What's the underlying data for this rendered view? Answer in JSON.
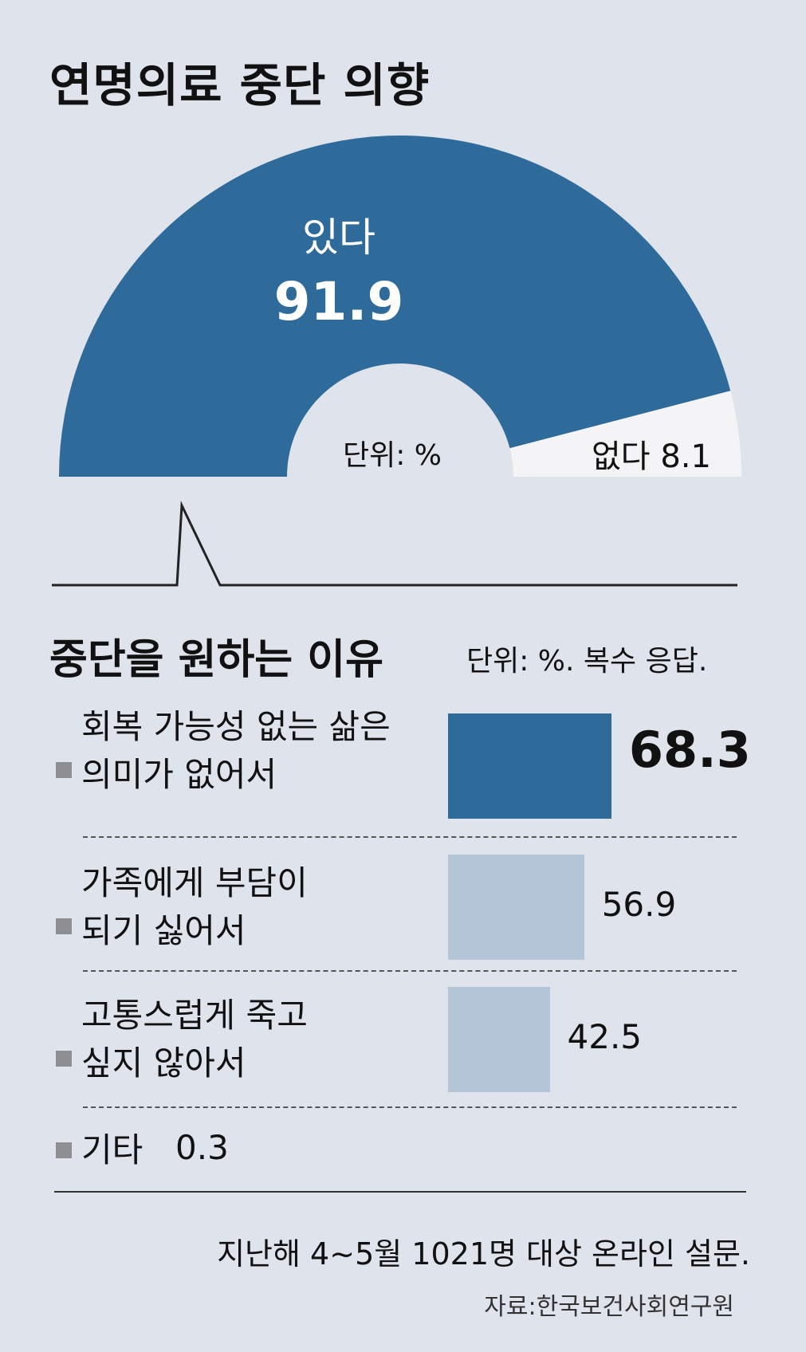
{
  "title": "연명의료 중단 의향",
  "pie": {
    "unit_label": "단위: %",
    "yes_label": "있다",
    "yes_value": "91.9",
    "no_text": "없다 8.1"
  },
  "section2": {
    "title": "중단을 원하는 이유",
    "unit_label": "단위: %. 복수 응답."
  },
  "footnote": "지난해 4~5월 1021명 대상 온라인 설문.",
  "source": "자료:한국보건사회연구원",
  "colors": {
    "background": "#dfe3ec",
    "primary": "#2e6b9b",
    "secondary": "#b4c5d8",
    "no_slice": "#f4f4f6",
    "bullet": "#8d8f93"
  },
  "chart_data": [
    {
      "type": "pie",
      "title": "연명의료 중단 의향",
      "shape": "half-donut",
      "unit": "%",
      "slices": [
        {
          "label": "있다",
          "value": 91.9
        },
        {
          "label": "없다",
          "value": 8.1
        }
      ]
    },
    {
      "type": "bar",
      "orientation": "horizontal",
      "title": "중단을 원하는 이유",
      "unit": "%",
      "note": "복수 응답",
      "categories": [
        "회복 가능성 없는 삶은 의미가 없어서",
        "가족에게 부담이 되기 싫어서",
        "고통스럽게 죽고 싶지 않아서",
        "기타"
      ],
      "category_lines": [
        [
          "회복 가능성 없는 삶은",
          "의미가 없어서"
        ],
        [
          "가족에게 부담이",
          "되기 싫어서"
        ],
        [
          "고통스럽게 죽고",
          "싶지 않아서"
        ],
        [
          "기타"
        ]
      ],
      "values": [
        68.3,
        56.9,
        42.5,
        0.3
      ],
      "value_labels": [
        "68.3",
        "56.9",
        "42.5",
        "0.3"
      ]
    }
  ]
}
